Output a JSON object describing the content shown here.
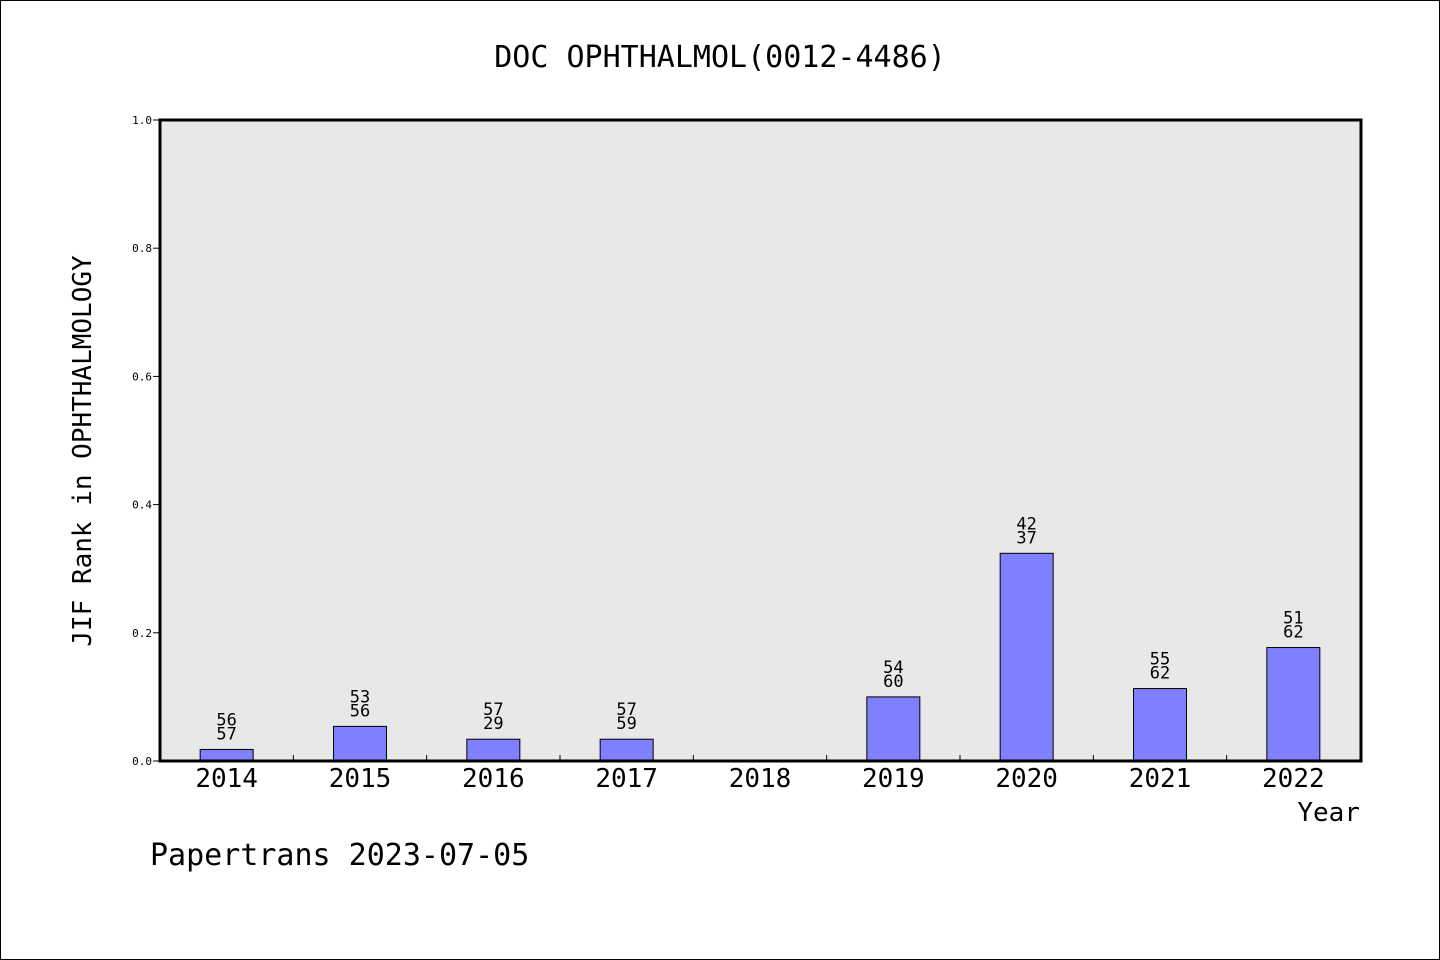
{
  "chart_data": {
    "type": "bar",
    "title": "DOC OPHTHALMOL(0012-4486)",
    "xlabel": "Year",
    "ylabel": "JIF Rank in OPHTHALMOLOGY",
    "ylim": [
      0,
      1.0
    ],
    "yticks": [
      "0.0",
      "0.2",
      "0.4",
      "0.6",
      "0.8",
      "1.0"
    ],
    "categories": [
      "2014",
      "2015",
      "2016",
      "2017",
      "2018",
      "2019",
      "2020",
      "2021",
      "2022"
    ],
    "values": [
      0.018,
      0.054,
      0.034,
      0.034,
      null,
      0.1,
      0.324,
      0.113,
      0.177
    ],
    "bar_labels_top": [
      "56",
      "53",
      "57",
      "57",
      "",
      "54",
      "42",
      "55",
      "51"
    ],
    "bar_labels_bottom": [
      "57",
      "56",
      "29",
      "59",
      "",
      "60",
      "37",
      "62",
      "62"
    ],
    "grid": false,
    "bar_color": "#8080ff",
    "plot_background": "#e8e8e8"
  },
  "footer": "Papertrans 2023-07-05"
}
